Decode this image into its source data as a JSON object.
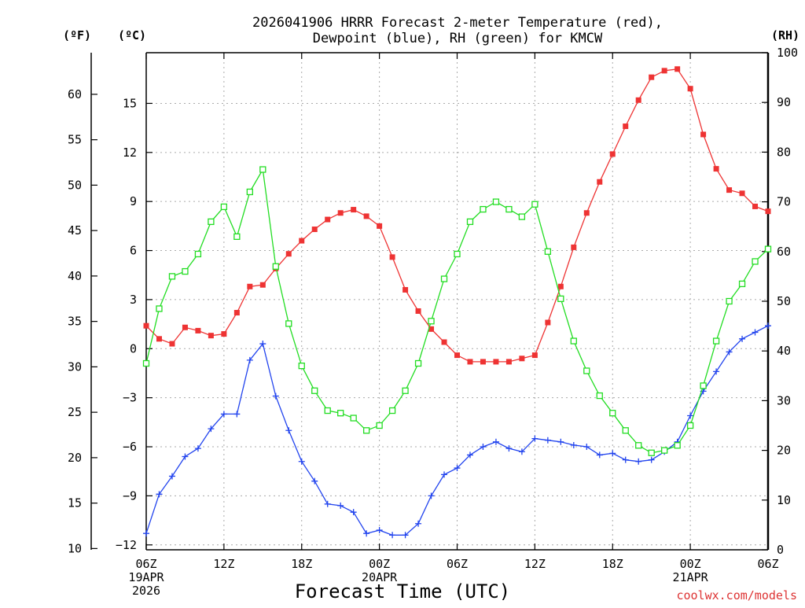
{
  "chart_data": {
    "type": "line",
    "title_line1": "2026041906 HRRR Forecast 2-meter Temperature (red),",
    "title_line2": "Dewpoint (blue), RH (green) for KMCW",
    "xlabel": "Forecast Time (UTC)",
    "credit": "coolwx.com/models",
    "units": {
      "fahrenheit": "(ºF)",
      "celsius": "(ºC)",
      "rh": "(RH)"
    },
    "x_range_hours": [
      0,
      48
    ],
    "celsius_range": [
      -12.3,
      18.1
    ],
    "rh_range": [
      0,
      100
    ],
    "fahrenheit_ticks": [
      "10",
      "15",
      "20",
      "25",
      "30",
      "35",
      "40",
      "45",
      "50",
      "55",
      "60"
    ],
    "celsius_ticks": [
      "−12",
      "−9",
      "−6",
      "−3",
      "0",
      "3",
      "6",
      "9",
      "12",
      "15"
    ],
    "rh_ticks": [
      "0",
      "10",
      "20",
      "30",
      "40",
      "50",
      "60",
      "70",
      "80",
      "90",
      "100"
    ],
    "x_ticks": [
      {
        "hour": 0,
        "line1": "06Z",
        "line2": "19APR",
        "line3": "2026"
      },
      {
        "hour": 6,
        "line1": "12Z",
        "line2": "",
        "line3": ""
      },
      {
        "hour": 12,
        "line1": "18Z",
        "line2": "",
        "line3": ""
      },
      {
        "hour": 18,
        "line1": "00Z",
        "line2": "20APR",
        "line3": ""
      },
      {
        "hour": 24,
        "line1": "06Z",
        "line2": "",
        "line3": ""
      },
      {
        "hour": 30,
        "line1": "12Z",
        "line2": "",
        "line3": ""
      },
      {
        "hour": 36,
        "line1": "18Z",
        "line2": "",
        "line3": ""
      },
      {
        "hour": 42,
        "line1": "00Z",
        "line2": "21APR",
        "line3": ""
      },
      {
        "hour": 48,
        "line1": "06Z",
        "line2": "",
        "line3": ""
      }
    ],
    "hours": [
      0,
      1,
      2,
      3,
      4,
      5,
      6,
      7,
      8,
      9,
      10,
      11,
      12,
      13,
      14,
      15,
      16,
      17,
      18,
      19,
      20,
      21,
      22,
      23,
      24,
      25,
      26,
      27,
      28,
      29,
      30,
      31,
      32,
      33,
      34,
      35,
      36,
      37,
      38,
      39,
      40,
      41,
      42,
      43,
      44,
      45,
      46,
      47,
      48
    ],
    "series": [
      {
        "name": "2-meter Temperature",
        "unit": "C",
        "color": "#ee3333",
        "marker": "filled-square",
        "values": [
          1.4,
          0.6,
          0.3,
          1.3,
          1.1,
          0.8,
          0.9,
          2.2,
          3.8,
          3.9,
          4.9,
          5.8,
          6.6,
          7.3,
          7.9,
          8.3,
          8.5,
          8.1,
          7.5,
          5.6,
          3.6,
          2.3,
          1.2,
          0.4,
          -0.4,
          -0.8,
          -0.8,
          -0.8,
          -0.8,
          -0.6,
          -0.4,
          1.6,
          3.8,
          6.2,
          8.3,
          10.2,
          11.9,
          13.6,
          15.2,
          16.6,
          17.0,
          17.1,
          15.9,
          13.1,
          11.0,
          9.7,
          9.5,
          8.7,
          8.4
        ]
      },
      {
        "name": "Dewpoint",
        "unit": "C",
        "color": "#2244ee",
        "marker": "plus",
        "values": [
          -11.3,
          -8.9,
          -7.8,
          -6.6,
          -6.1,
          -4.9,
          -4.0,
          -4.0,
          -0.7,
          0.3,
          -2.9,
          -5.0,
          -6.9,
          -8.1,
          -9.5,
          -9.6,
          -10.0,
          -11.3,
          -11.1,
          -11.4,
          -11.4,
          -10.7,
          -9.0,
          -7.7,
          -7.3,
          -6.5,
          -6.0,
          -5.7,
          -6.1,
          -6.3,
          -5.5,
          -5.6,
          -5.7,
          -5.9,
          -6.0,
          -6.5,
          -6.4,
          -6.8,
          -6.9,
          -6.8,
          -6.3,
          -5.7,
          -4.1,
          -2.6,
          -1.4,
          -0.2,
          0.6,
          1.0,
          1.4
        ]
      },
      {
        "name": "RH",
        "unit": "%",
        "color": "#22dd22",
        "marker": "open-square",
        "values": [
          37.5,
          48.5,
          55,
          56,
          59.5,
          66,
          69,
          63,
          72,
          76.5,
          57,
          45.5,
          37,
          32,
          28,
          27.5,
          26.5,
          24,
          25,
          28,
          32,
          37.5,
          46,
          54.5,
          59.5,
          66,
          68.5,
          70,
          68.5,
          67,
          69.5,
          60,
          50.5,
          42,
          36,
          31,
          27.5,
          24,
          21,
          19.5,
          20,
          21,
          25,
          33,
          42,
          50,
          53.5,
          58,
          60.5
        ]
      }
    ]
  }
}
